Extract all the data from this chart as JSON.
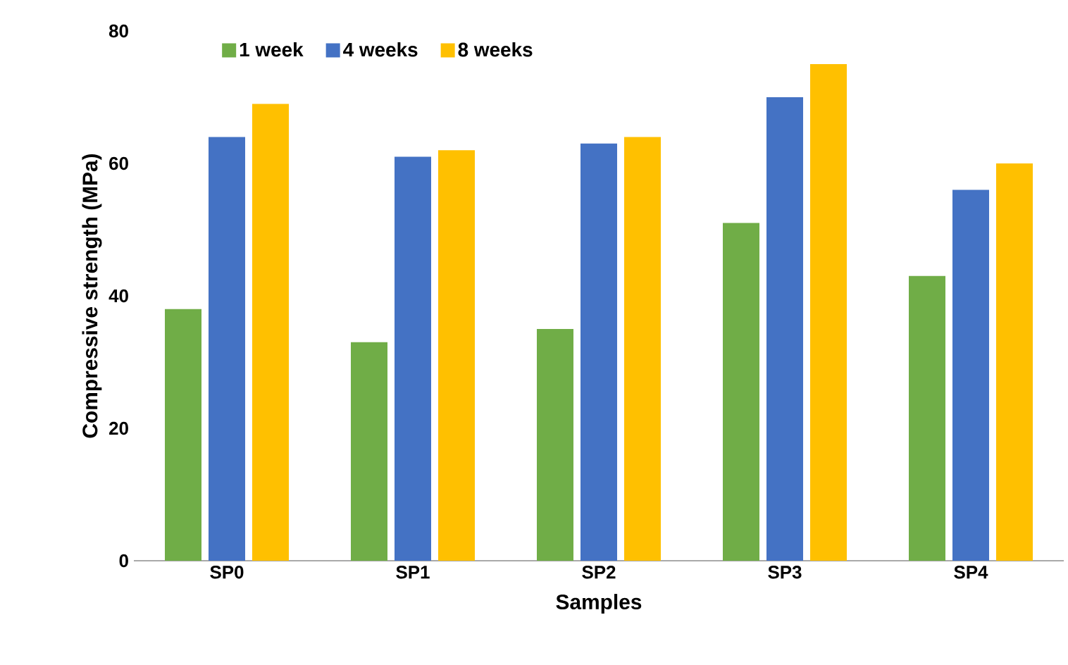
{
  "chart_data": {
    "type": "bar",
    "xlabel": "Samples",
    "ylabel": "Compressive strength (MPa)",
    "categories": [
      "SP0",
      "SP1",
      "SP2",
      "SP3",
      "SP4"
    ],
    "series": [
      {
        "name": "1 week",
        "color": "#70ad47",
        "values": [
          38,
          33,
          35,
          51,
          43
        ]
      },
      {
        "name": "4 weeks",
        "color": "#4472c4",
        "values": [
          64,
          61,
          63,
          70,
          56
        ]
      },
      {
        "name": "8 weeks",
        "color": "#ffc000",
        "values": [
          69,
          62,
          64,
          75,
          60
        ]
      }
    ],
    "ylim": [
      0,
      80
    ],
    "yticks": [
      0,
      20,
      40,
      60,
      80
    ],
    "legend": "top left"
  }
}
